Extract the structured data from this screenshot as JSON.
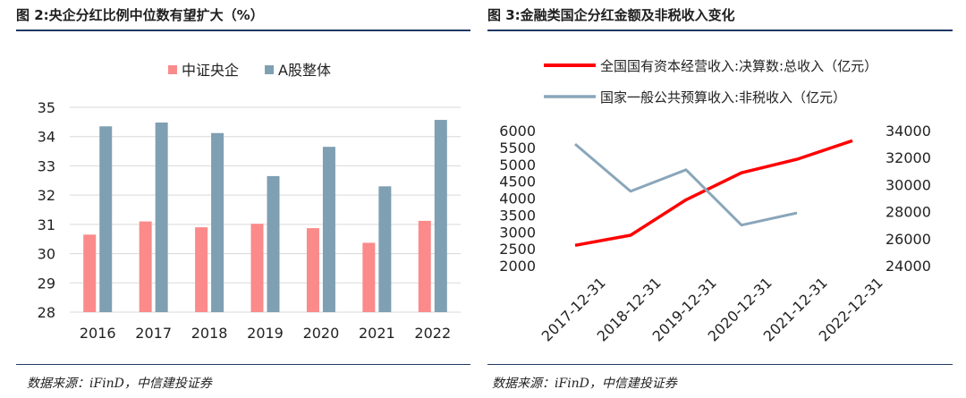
{
  "left": {
    "title": "图 2:央企分红比例中位数有望扩大（%）",
    "source": "数据来源：iFinD，中信建投证券"
  },
  "right": {
    "title": "图 3:金融类国企分红金额及非税收入变化",
    "source": "数据来源：iFinD，中信建投证券"
  },
  "colors": {
    "rule": "#1f3864",
    "bar_a": "#fb8a8a",
    "bar_b": "#7f9fb3",
    "line_red": "#ff0000",
    "line_blue": "#8aa6ba"
  },
  "chart_data": [
    {
      "type": "bar",
      "categories": [
        "2016",
        "2017",
        "2018",
        "2019",
        "2020",
        "2021",
        "2022"
      ],
      "series": [
        {
          "name": "中证央企",
          "color": "#fb8a8a",
          "values": [
            30.65,
            31.1,
            30.9,
            31.02,
            30.87,
            30.37,
            31.12
          ]
        },
        {
          "name": "A股整体",
          "color": "#7f9fb3",
          "values": [
            34.35,
            34.48,
            34.12,
            32.65,
            33.65,
            32.3,
            34.57
          ]
        }
      ],
      "ylim": [
        28,
        35
      ],
      "yticks": [
        28,
        29,
        30,
        31,
        32,
        33,
        34,
        35
      ],
      "grid": true,
      "legend": "top"
    },
    {
      "type": "line",
      "x": [
        "2017-12-31",
        "2018-12-31",
        "2019-12-31",
        "2020-12-31",
        "2021-12-31",
        "2022-12-31"
      ],
      "series": [
        {
          "name": "全国国有资本经营收入:决算数:总收入（亿元）",
          "axis": "left",
          "color": "#ff0000",
          "values": [
            2600,
            2900,
            3950,
            4750,
            5150,
            5700
          ]
        },
        {
          "name": "国家一般公共预算收入:非税收入（亿元）",
          "axis": "right",
          "color": "#8aa6ba",
          "values": [
            33000,
            29500,
            31100,
            27000,
            27900,
            null
          ]
        }
      ],
      "ylim_left": [
        2000,
        6000
      ],
      "yticks_left": [
        2000,
        2500,
        3000,
        3500,
        4000,
        4500,
        5000,
        5500,
        6000
      ],
      "ylim_right": [
        24000,
        34000
      ],
      "yticks_right": [
        24000,
        26000,
        28000,
        30000,
        32000,
        34000
      ],
      "grid": false,
      "legend": "top"
    }
  ]
}
